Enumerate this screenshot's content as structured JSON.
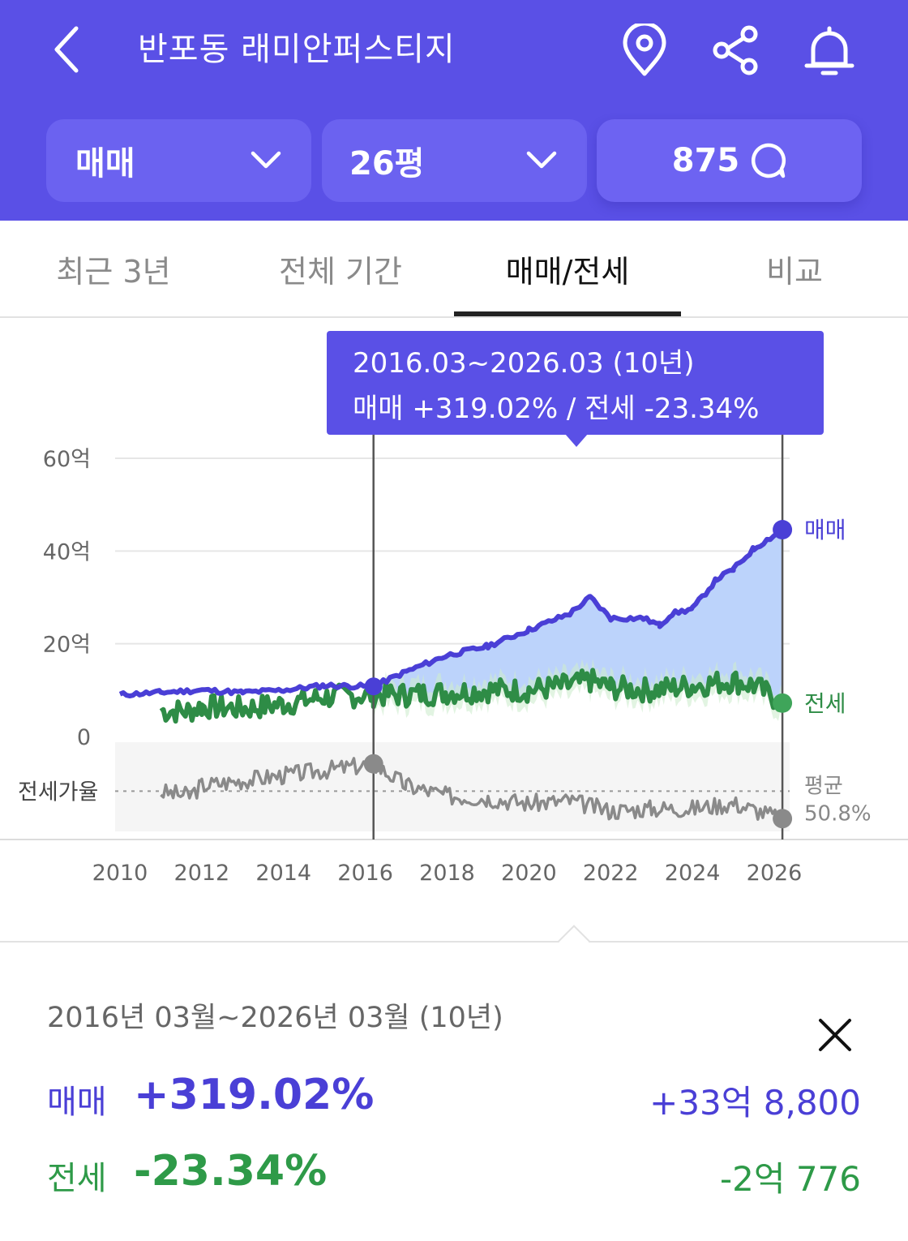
{
  "header": {
    "title": "반포동 래미안퍼스티지",
    "deal_type": "매매",
    "size": "26평",
    "comment_count": "875"
  },
  "tabs": [
    {
      "label": "최근 3년",
      "active": false
    },
    {
      "label": "전체 기간",
      "active": false
    },
    {
      "label": "매매/전세",
      "active": true
    },
    {
      "label": "비교",
      "active": false
    }
  ],
  "tooltip": {
    "line1": "2016.03~2026.03 (10년)",
    "line2": "매매 +319.02%  /  전세 -23.34%"
  },
  "chart_data": {
    "type": "line",
    "y_ticks": [
      "60억",
      "40억",
      "20억",
      "0"
    ],
    "x_ticks": [
      "2010",
      "2012",
      "2014",
      "2016",
      "2018",
      "2020",
      "2022",
      "2024",
      "2026"
    ],
    "ylim": [
      0,
      60
    ],
    "selection": [
      "2016.03",
      "2026.03"
    ],
    "series": [
      {
        "name": "매매",
        "color": "#4a3fd6",
        "x": [
          2010,
          2011,
          2012,
          2013,
          2014,
          2015,
          2016.2,
          2017,
          2018,
          2019,
          2020,
          2021,
          2021.5,
          2022,
          2022.8,
          2023.2,
          2023.5,
          2024,
          2024.6,
          2025,
          2025.5,
          2026.2
        ],
        "y": [
          9,
          9.5,
          10,
          9.5,
          10,
          11,
          10.8,
          14,
          17.5,
          19.5,
          23,
          26.5,
          30,
          25.5,
          25.5,
          24,
          26.5,
          27.5,
          34,
          36,
          40.5,
          44.6
        ]
      },
      {
        "name": "전세",
        "color": "#2e8c46",
        "x": [
          2011,
          2011.7,
          2012,
          2013,
          2014,
          2015,
          2016.2,
          2017,
          2018,
          2019,
          2020,
          2021,
          2021.5,
          2022,
          2023,
          2024,
          2025,
          2025.5,
          2026.2
        ],
        "y": [
          5.5,
          5.5,
          6.5,
          6,
          7,
          8.5,
          9,
          9,
          9.5,
          10,
          10,
          11,
          12,
          10.5,
          10,
          11,
          12,
          11,
          7.2
        ]
      }
    ],
    "ratio": {
      "label": "전세가율",
      "avg_label": "평균",
      "avg_value": "50.8%",
      "x": [
        2011,
        2011.7,
        2012,
        2013,
        2014,
        2015,
        2016.2,
        2017,
        2018,
        2019,
        2020,
        2021,
        2022,
        2023,
        2024,
        2025,
        2026.2
      ],
      "y": [
        50.5,
        49,
        53,
        55,
        57,
        59,
        61.5,
        53,
        49,
        48,
        46,
        47,
        43,
        44,
        44,
        46,
        40
      ]
    }
  },
  "summary": {
    "period": "2016년 03월~2026년 03월 (10년)",
    "sale_label": "매매",
    "sale_pct": "+319.02%",
    "sale_amt": "+33억 8,800",
    "jeonse_label": "전세",
    "jeonse_pct": "-23.34%",
    "jeonse_amt": "-2억 776"
  }
}
